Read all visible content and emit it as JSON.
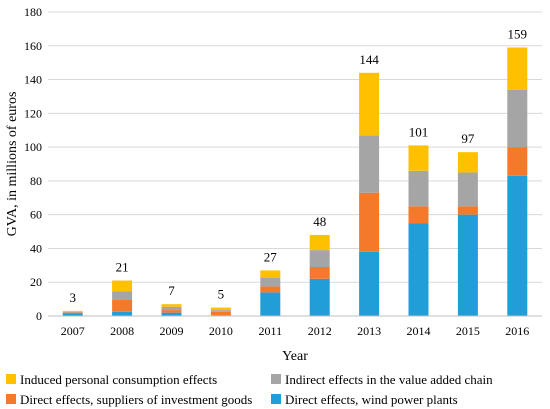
{
  "chart_data": {
    "type": "bar",
    "stacked": true,
    "xlabel": "Year",
    "ylabel": "GVA, in millions of euros",
    "ylim": [
      0,
      180
    ],
    "yticks": [
      0,
      20,
      40,
      60,
      80,
      100,
      120,
      140,
      160,
      180
    ],
    "grid": true,
    "legend_position": "bottom",
    "categories": [
      "2007",
      "2008",
      "2009",
      "2010",
      "2011",
      "2012",
      "2013",
      "2014",
      "2015",
      "2016"
    ],
    "totals": [
      "3",
      "21",
      "7",
      "5",
      "27",
      "48",
      "144",
      "101",
      "97",
      "159"
    ],
    "series": [
      {
        "name": "Direct effects, wind power plants",
        "color": "#1f9ed8",
        "values": [
          1.5,
          2.5,
          2,
          0.5,
          14,
          22,
          38,
          55,
          60,
          83
        ]
      },
      {
        "name": "Direct effects, suppliers of investment goods",
        "color": "#f47a2b",
        "values": [
          0.5,
          7,
          1.5,
          2,
          3.5,
          7,
          35,
          10,
          5,
          17
        ]
      },
      {
        "name": "Indirect effects in the value added chain",
        "color": "#a5a5a5",
        "values": [
          0.5,
          5,
          2,
          1,
          5,
          10,
          34,
          21,
          20,
          34
        ]
      },
      {
        "name": "Induced personal consumption effects",
        "color": "#ffc000",
        "values": [
          0.5,
          6.5,
          1.5,
          1.5,
          4.5,
          9,
          37,
          15,
          12,
          25
        ]
      }
    ],
    "legend_order": [
      3,
      2,
      1,
      0
    ]
  }
}
